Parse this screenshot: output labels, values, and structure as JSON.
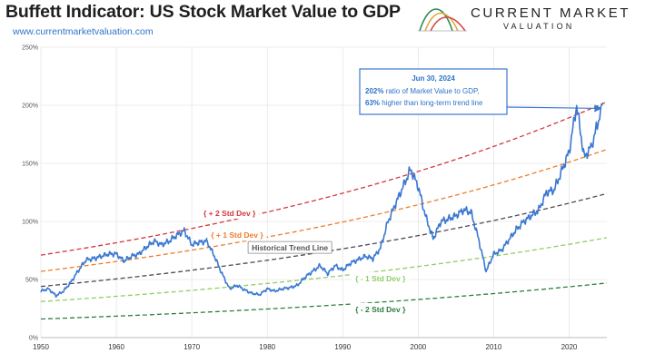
{
  "header": {
    "title": "Buffett Indicator: US Stock Market Value to GDP",
    "url": "www.currentmarketvaluation.com",
    "brand_name": "CURRENT MARKET",
    "brand_sub": "VALUATION"
  },
  "chart_data": {
    "type": "line",
    "title": "Buffett Indicator: US Stock Market Value to GDP",
    "xlim": [
      1950,
      2025
    ],
    "ylim": [
      0,
      250
    ],
    "x_ticks": [
      "1950",
      "1960",
      "1970",
      "1980",
      "1990",
      "2000",
      "2010",
      "2020"
    ],
    "y_ticks": [
      "0%",
      "50%",
      "100%",
      "150%",
      "200%",
      "250%"
    ],
    "grid": true,
    "series": [
      {
        "name": "",
        "color": "#3a78d0",
        "x": [
          1950,
          1951,
          1952,
          1953,
          1954,
          1955,
          1956,
          1957,
          1958,
          1959,
          1960,
          1961,
          1962,
          1963,
          1964,
          1965,
          1966,
          1967,
          1968,
          1969,
          1970,
          1971,
          1972,
          1973,
          1974,
          1975,
          1976,
          1977,
          1978,
          1979,
          1980,
          1981,
          1982,
          1983,
          1984,
          1985,
          1986,
          1987,
          1988,
          1989,
          1990,
          1991,
          1992,
          1993,
          1994,
          1995,
          1996,
          1997,
          1998,
          1999,
          2000,
          2001,
          2002,
          2003,
          2004,
          2005,
          2006,
          2007,
          2008,
          2009,
          2010,
          2011,
          2012,
          2013,
          2014,
          2015,
          2016,
          2017,
          2018,
          2019,
          2020,
          2021,
          2022,
          2023,
          2024.5
        ],
        "values": [
          40,
          42,
          36,
          40,
          48,
          58,
          67,
          68,
          70,
          72,
          72,
          66,
          70,
          72,
          78,
          83,
          80,
          83,
          88,
          92,
          80,
          82,
          83,
          70,
          55,
          42,
          45,
          41,
          38,
          37,
          42,
          40,
          42,
          43,
          45,
          52,
          57,
          62,
          55,
          62,
          58,
          64,
          67,
          70,
          68,
          77,
          100,
          115,
          130,
          145,
          130,
          104,
          85,
          100,
          102,
          105,
          110,
          108,
          85,
          57,
          72,
          75,
          84,
          93,
          100,
          105,
          110,
          125,
          127,
          143,
          160,
          200,
          155,
          165,
          202
        ]
      }
    ],
    "trend_lines": [
      {
        "label": "+ 2 Std Dev",
        "color": "#d3373d",
        "x": [
          1950,
          2025
        ],
        "values": [
          71,
          203
        ]
      },
      {
        "label": "+ 1 Std Dev",
        "color": "#ee7d2a",
        "x": [
          1950,
          2025
        ],
        "values": [
          57,
          162
        ]
      },
      {
        "label": "Historical Trend Line",
        "color": "#4f4a55",
        "x": [
          1950,
          2025
        ],
        "values": [
          44,
          124
        ]
      },
      {
        "label": "- 1 Std Dev",
        "color": "#8fcf62",
        "x": [
          1950,
          2025
        ],
        "values": [
          31,
          86
        ]
      },
      {
        "label": "- 2 Std Dev",
        "color": "#2e7d3f",
        "x": [
          1950,
          2025
        ],
        "values": [
          16,
          47
        ]
      }
    ],
    "annotation": {
      "date": "Jun 30, 2024",
      "line1_bold": "202%",
      "line1_rest": " ratio of Market Value to GDP,",
      "line2_bold": "63%",
      "line2_rest": " higher than long-term trend line",
      "x": 2024.5,
      "value": 202
    }
  }
}
